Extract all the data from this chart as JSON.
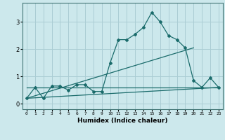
{
  "title": "",
  "xlabel": "Humidex (Indice chaleur)",
  "ylabel": "",
  "bg_color": "#cce8ec",
  "grid_color": "#aacdd4",
  "line_color": "#1a6b6b",
  "xlim": [
    -0.5,
    23.5
  ],
  "ylim": [
    -0.2,
    3.7
  ],
  "xticks": [
    0,
    1,
    2,
    3,
    4,
    5,
    6,
    7,
    8,
    9,
    10,
    11,
    12,
    13,
    14,
    15,
    16,
    17,
    18,
    19,
    20,
    21,
    22,
    23
  ],
  "yticks": [
    0,
    1,
    2,
    3
  ],
  "series": [
    {
      "x": [
        0,
        1,
        2,
        3,
        4,
        5,
        6,
        7,
        8,
        9,
        10,
        11,
        12,
        13,
        14,
        15,
        16,
        17,
        18,
        19,
        20,
        21,
        22,
        23
      ],
      "y": [
        0.2,
        0.6,
        0.2,
        0.65,
        0.65,
        0.5,
        0.7,
        0.7,
        0.45,
        0.45,
        1.5,
        2.35,
        2.35,
        2.55,
        2.8,
        3.35,
        3.0,
        2.5,
        2.35,
        2.05,
        0.85,
        0.6,
        0.95,
        0.6
      ],
      "marker": true
    },
    {
      "x": [
        0,
        23
      ],
      "y": [
        0.2,
        0.6
      ],
      "marker": false
    },
    {
      "x": [
        0,
        20
      ],
      "y": [
        0.2,
        2.05
      ],
      "marker": false
    },
    {
      "x": [
        0,
        23
      ],
      "y": [
        0.6,
        0.6
      ],
      "marker": false
    }
  ]
}
